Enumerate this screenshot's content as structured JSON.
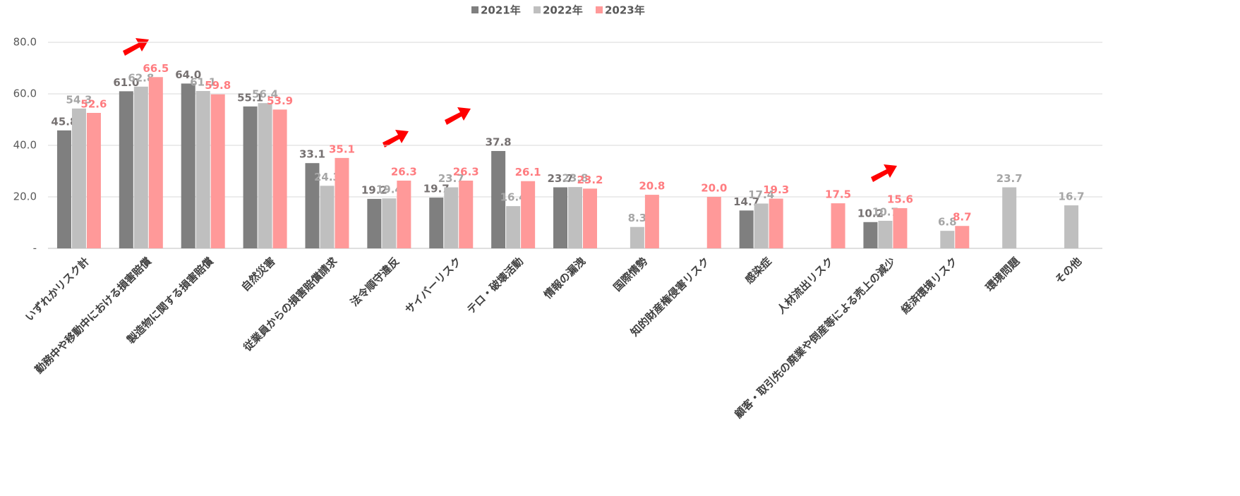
{
  "chart_data": {
    "type": "bar",
    "categories": [
      "いずれかリスク計",
      "勤務中や移動中における損害賠償",
      "製造物に関する損害賠償",
      "自然災害",
      "従業員からの損害賠償請求",
      "法令順守違反",
      "サイバーリスク",
      "テロ・破壊活動",
      "情報の漏洩",
      "国際情勢",
      "知的財産権侵害リスク",
      "感染症",
      "人材流出リスク",
      "顧客・取引先の廃業や倒産等による売上の減少",
      "経済環境リスク",
      "環境問題",
      "その他"
    ],
    "series": [
      {
        "name": "2021年",
        "color": "#7f7f7f",
        "values": [
          45.8,
          61.0,
          64.0,
          55.1,
          33.1,
          19.2,
          19.7,
          37.8,
          23.7,
          null,
          null,
          14.7,
          null,
          10.2,
          null,
          null,
          null
        ],
        "value_labels": [
          "45.8",
          "61.0",
          "64.0",
          "55.1",
          "33.1",
          "19.2",
          "19.7",
          "37.8",
          "23.7",
          null,
          null,
          "14.7",
          null,
          "10.2",
          null,
          null,
          null
        ]
      },
      {
        "name": "2022年",
        "color": "#bfbfbf",
        "values": [
          54.3,
          62.8,
          61.1,
          56.4,
          24.3,
          19.4,
          23.7,
          16.4,
          23.8,
          8.3,
          null,
          17.4,
          null,
          10.7,
          6.8,
          23.7,
          16.7
        ],
        "value_labels": [
          "54.3",
          "62.8",
          "61.1",
          "56.4",
          "24.3",
          "19.4",
          "23.7",
          "16.4",
          "23.8",
          "8.3",
          null,
          "17.4",
          null,
          "10.7",
          "6.8",
          "23.7",
          "16.7"
        ]
      },
      {
        "name": "2023年",
        "color": "#ff9999",
        "values": [
          52.6,
          66.5,
          59.8,
          53.9,
          35.1,
          26.3,
          26.3,
          26.1,
          23.2,
          20.8,
          20.0,
          19.3,
          17.5,
          15.6,
          8.7,
          null,
          null
        ],
        "value_labels": [
          "52.6",
          "66.5",
          "59.8",
          "53.9",
          "35.1",
          "26.3",
          "26.3",
          "26.1",
          "23.2",
          "20.8",
          "20.0",
          "19.3",
          "17.5",
          "15.6",
          "8.7",
          null,
          null
        ]
      }
    ],
    "ylim": [
      0,
      80
    ],
    "yticks": [
      {
        "value": 0,
        "label": "-"
      },
      {
        "value": 20,
        "label": "20.0"
      },
      {
        "value": 40,
        "label": "40.0"
      },
      {
        "value": 60,
        "label": "60.0"
      },
      {
        "value": 80,
        "label": "80.0"
      }
    ],
    "grid": true,
    "legend": "top"
  }
}
